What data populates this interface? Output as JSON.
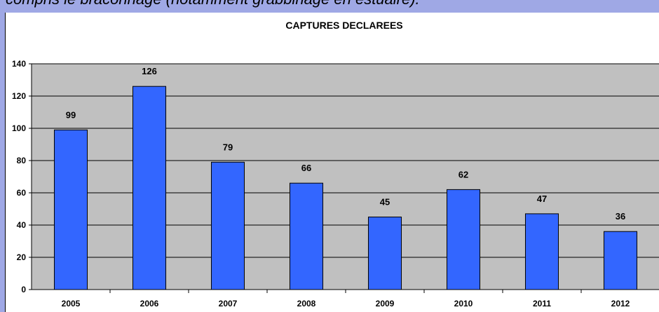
{
  "caption": "compris le braconnage (notamment grabbinage en estuaire).",
  "chart_data": {
    "type": "bar",
    "title": "CAPTURES DECLAREES",
    "categories": [
      "2005",
      "2006",
      "2007",
      "2008",
      "2009",
      "2010",
      "2011",
      "2012"
    ],
    "values": [
      99,
      126,
      79,
      66,
      45,
      62,
      47,
      36
    ],
    "data_labels": [
      "99",
      "126",
      "79",
      "66",
      "45",
      "62",
      "47",
      "36"
    ],
    "ylim": [
      0,
      140
    ],
    "yticks": [
      0,
      20,
      40,
      60,
      80,
      100,
      120,
      140
    ],
    "ytick_labels": [
      "0",
      "20",
      "40",
      "60",
      "80",
      "100",
      "120",
      "140"
    ],
    "xlabel": "",
    "ylabel": "",
    "grid": true,
    "colors": {
      "bar": "#3366ff",
      "plot_bg": "#c0c0c0",
      "frame": "#9fa8e5"
    }
  }
}
